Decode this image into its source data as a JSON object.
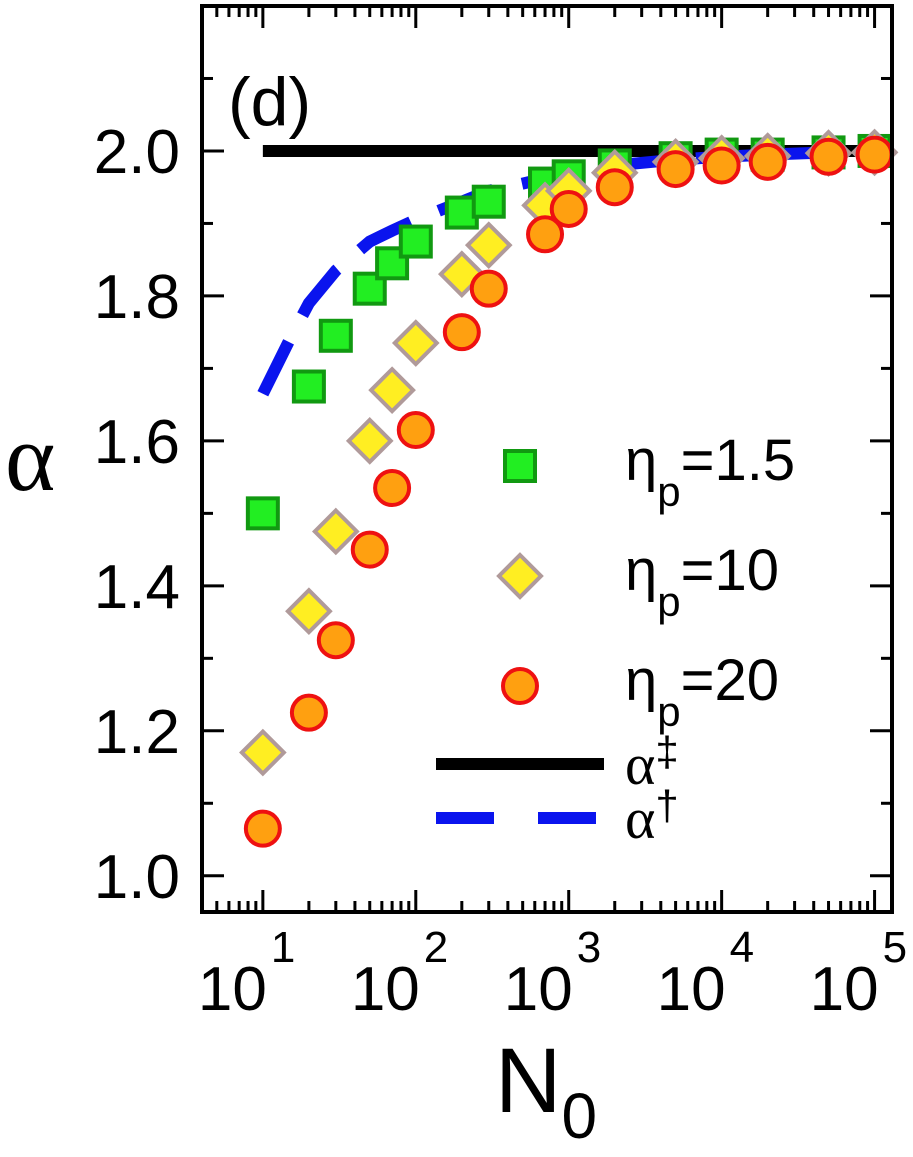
{
  "chart_data": {
    "type": "scatter",
    "panel_label": "(d)",
    "xlabel": "N",
    "xlabel_sub": "0",
    "ylabel": "α",
    "xscale": "log",
    "xlim": [
      4,
      130000
    ],
    "ylim": [
      0.95,
      2.2
    ],
    "xticks": [
      {
        "value": 10,
        "base": "10",
        "exp": "1"
      },
      {
        "value": 100,
        "base": "10",
        "exp": "2"
      },
      {
        "value": 1000,
        "base": "10",
        "exp": "3"
      },
      {
        "value": 10000,
        "base": "10",
        "exp": "4"
      },
      {
        "value": 100000,
        "base": "10",
        "exp": "5"
      }
    ],
    "yticks": [
      {
        "value": 1.0,
        "label": "1.0"
      },
      {
        "value": 1.2,
        "label": "1.2"
      },
      {
        "value": 1.4,
        "label": "1.4"
      },
      {
        "value": 1.6,
        "label": "1.6"
      },
      {
        "value": 1.8,
        "label": "1.8"
      },
      {
        "value": 2.0,
        "label": "2.0"
      }
    ],
    "grid": false,
    "legend_position": "right",
    "series": [
      {
        "name": "η",
        "name_sub": "p",
        "name_suffix": "=1.5",
        "marker": "square",
        "fill": "#22ee22",
        "stroke": "#119911",
        "x": [
          10,
          20,
          30,
          50,
          70,
          100,
          200,
          300,
          700,
          1000,
          2000,
          5000,
          10000,
          20000,
          50000,
          100000
        ],
        "y": [
          1.5,
          1.675,
          1.745,
          1.81,
          1.845,
          1.875,
          1.915,
          1.93,
          1.955,
          1.965,
          1.98,
          1.99,
          1.995,
          1.995,
          1.998,
          2.0
        ]
      },
      {
        "name": "η",
        "name_sub": "p",
        "name_suffix": "=10",
        "marker": "diamond",
        "fill": "#ffee22",
        "stroke": "#b09a9a",
        "x": [
          10,
          20,
          30,
          50,
          70,
          100,
          200,
          300,
          700,
          1000,
          2000,
          5000,
          10000,
          20000,
          50000,
          100000
        ],
        "y": [
          1.17,
          1.365,
          1.475,
          1.6,
          1.67,
          1.735,
          1.83,
          1.87,
          1.925,
          1.945,
          1.97,
          1.985,
          1.99,
          1.993,
          1.997,
          1.998
        ]
      },
      {
        "name": "η",
        "name_sub": "p",
        "name_suffix": "=20",
        "marker": "circle",
        "fill": "#ffa010",
        "stroke": "#ee1111",
        "x": [
          10,
          20,
          30,
          50,
          70,
          100,
          200,
          300,
          700,
          1000,
          2000,
          5000,
          10000,
          20000,
          50000,
          100000
        ],
        "y": [
          1.065,
          1.225,
          1.325,
          1.45,
          1.535,
          1.615,
          1.75,
          1.81,
          1.885,
          1.92,
          1.95,
          1.975,
          1.98,
          1.985,
          1.992,
          1.995
        ]
      }
    ],
    "lines": [
      {
        "name": "α",
        "name_sup": "‡",
        "style": "solid",
        "color": "#000000",
        "x": [
          10,
          100000
        ],
        "y": [
          2.0,
          2.0
        ]
      },
      {
        "name": "α",
        "name_sup": "†",
        "style": "dashed",
        "color": "#0a14ee",
        "x": [
          10,
          15,
          20,
          30,
          50,
          70,
          100,
          200,
          300,
          500,
          1000,
          2000,
          5000,
          10000,
          20000,
          50000,
          100000
        ],
        "y": [
          1.665,
          1.74,
          1.79,
          1.835,
          1.875,
          1.89,
          1.905,
          1.93,
          1.945,
          1.955,
          1.97,
          1.98,
          1.988,
          1.992,
          1.995,
          1.998,
          1.999
        ]
      }
    ]
  }
}
